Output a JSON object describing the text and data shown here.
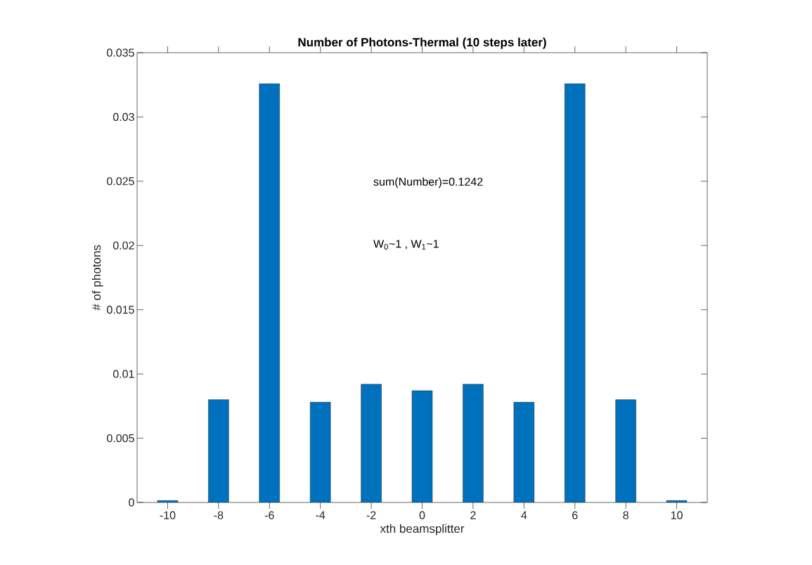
{
  "chart_data": {
    "type": "bar",
    "title": "Number of Photons-Thermal (10 steps later)",
    "xlabel": "xth beamsplitter",
    "ylabel": "# of photons",
    "x": [
      -10,
      -8,
      -6,
      -4,
      -2,
      0,
      2,
      4,
      6,
      8,
      10
    ],
    "values": [
      0.00015,
      0.008,
      0.0326,
      0.0078,
      0.0092,
      0.0087,
      0.0092,
      0.0078,
      0.0326,
      0.008,
      0.00015
    ],
    "color": "#0072bd",
    "xlim": [
      -11.2,
      11.2
    ],
    "xticks": [
      -10,
      -8,
      -6,
      -4,
      -2,
      0,
      2,
      4,
      6,
      8,
      10
    ],
    "ylim": [
      0,
      0.035
    ],
    "yticks": [
      0,
      0.005,
      0.01,
      0.015,
      0.02,
      0.025,
      0.03,
      0.035
    ],
    "annotations": [
      "sum(Number)=0.1242",
      "W$_{0}$~1 , W$_{1}$~1"
    ]
  }
}
